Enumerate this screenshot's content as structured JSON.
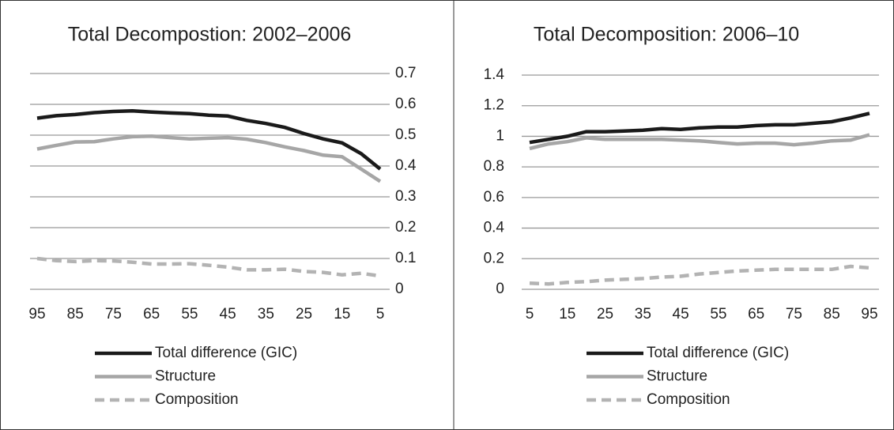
{
  "chart_data": [
    {
      "type": "line",
      "title": "Total Decompostion: 2002–2006",
      "x": [
        95,
        90,
        85,
        80,
        75,
        70,
        65,
        60,
        55,
        50,
        45,
        40,
        35,
        30,
        25,
        20,
        15,
        10,
        5
      ],
      "xlim": [
        95,
        5
      ],
      "xticks": [
        95,
        85,
        75,
        65,
        55,
        45,
        35,
        25,
        15,
        5
      ],
      "ylim": [
        0,
        0.7
      ],
      "yticks": [
        0,
        0.1,
        0.2,
        0.3,
        0.4,
        0.5,
        0.6,
        0.7
      ],
      "yaxis_side": "right",
      "grid": true,
      "series": [
        {
          "name": "Total difference (GIC)",
          "color": "#1a1a1a",
          "dashed": false,
          "values": [
            0.555,
            0.563,
            0.567,
            0.573,
            0.577,
            0.579,
            0.575,
            0.572,
            0.57,
            0.565,
            0.562,
            0.548,
            0.538,
            0.525,
            0.505,
            0.488,
            0.475,
            0.44,
            0.39
          ]
        },
        {
          "name": "Structure",
          "color": "#a6a6a6",
          "dashed": false,
          "values": [
            0.455,
            0.467,
            0.478,
            0.479,
            0.488,
            0.495,
            0.497,
            0.492,
            0.488,
            0.49,
            0.492,
            0.487,
            0.476,
            0.462,
            0.45,
            0.435,
            0.43,
            0.39,
            0.35
          ]
        },
        {
          "name": "Composition",
          "color": "#b3b3b3",
          "dashed": true,
          "values": [
            0.1,
            0.093,
            0.09,
            0.093,
            0.092,
            0.088,
            0.082,
            0.082,
            0.083,
            0.078,
            0.072,
            0.063,
            0.063,
            0.065,
            0.058,
            0.055,
            0.047,
            0.052,
            0.043
          ]
        }
      ]
    },
    {
      "type": "line",
      "title": "Total Decomposition: 2006–10",
      "x": [
        5,
        10,
        15,
        20,
        25,
        30,
        35,
        40,
        45,
        50,
        55,
        60,
        65,
        70,
        75,
        80,
        85,
        90,
        95
      ],
      "xlim": [
        5,
        95
      ],
      "xticks": [
        5,
        15,
        25,
        35,
        45,
        55,
        65,
        75,
        85,
        95
      ],
      "ylim": [
        0,
        1.4
      ],
      "yticks": [
        0,
        0.2,
        0.4,
        0.6,
        0.8,
        1,
        1.2,
        1.4
      ],
      "yaxis_side": "left",
      "grid": true,
      "series": [
        {
          "name": "Total difference (GIC)",
          "color": "#1a1a1a",
          "dashed": false,
          "values": [
            0.96,
            0.98,
            1.0,
            1.03,
            1.03,
            1.035,
            1.04,
            1.05,
            1.045,
            1.055,
            1.06,
            1.06,
            1.07,
            1.075,
            1.075,
            1.085,
            1.095,
            1.12,
            1.15
          ]
        },
        {
          "name": "Structure",
          "color": "#a6a6a6",
          "dashed": false,
          "values": [
            0.92,
            0.95,
            0.965,
            0.99,
            0.98,
            0.98,
            0.98,
            0.98,
            0.975,
            0.97,
            0.96,
            0.95,
            0.955,
            0.955,
            0.945,
            0.955,
            0.97,
            0.975,
            1.01
          ]
        },
        {
          "name": "Composition",
          "color": "#b3b3b3",
          "dashed": true,
          "values": [
            0.04,
            0.035,
            0.045,
            0.05,
            0.06,
            0.065,
            0.07,
            0.08,
            0.085,
            0.1,
            0.11,
            0.12,
            0.125,
            0.13,
            0.13,
            0.13,
            0.13,
            0.15,
            0.14
          ]
        }
      ]
    }
  ]
}
